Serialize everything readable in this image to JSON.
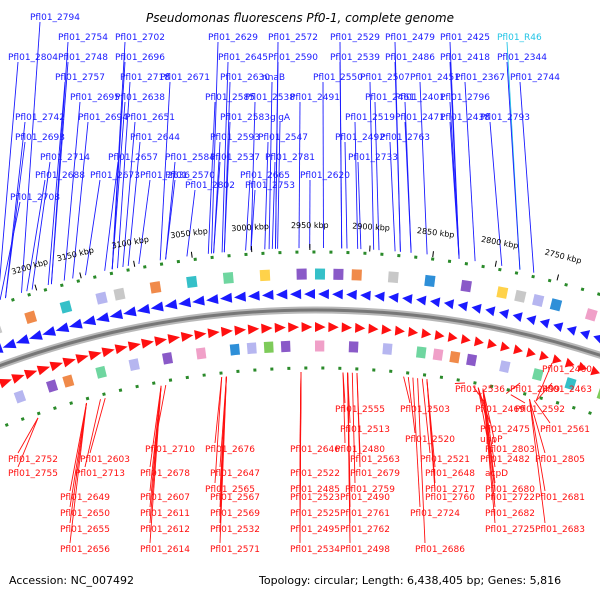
{
  "title": "Pseudomonas fluorescens Pf0-1, complete genome",
  "footer": {
    "accession": "Accession: NC_007492",
    "topology": "Topology: circular; Length: 6,438,405 bp; Genes: 5,816"
  },
  "colors": {
    "forward_strand": "#1a1aff",
    "reverse_strand": "#ff1010",
    "rna_label": "#22c4e6",
    "backbone": "#777777",
    "marker": "#2a8a2a"
  },
  "ticks": [
    "3200 kbp",
    "3150 kbp",
    "3100 kbp",
    "3050 kbp",
    "3000 kbp",
    "2950 kbp",
    "2900 kbp",
    "2850 kbp",
    "2800 kbp",
    "2750 kbp"
  ],
  "top_labels": [
    "Pfl01_2794",
    "Pfl01_2754",
    "Pfl01_2702",
    "Pfl01_2629",
    "Pfl01_2572",
    "Pfl01_2529",
    "Pfl01_2479",
    "Pfl01_2425",
    "Pfl01_R46",
    "Pfl01_2804",
    "Pfl01_2748",
    "Pfl01_2696",
    "Pfl01_2645",
    "Pfl01_2590",
    "Pfl01_2539",
    "Pfl01_2486",
    "Pfl01_2418",
    "Pfl01_2344",
    "Pfl01_2757",
    "Pfl01_2718",
    "Pfl01_2671",
    "Pfl01_2630",
    "nnaB",
    "Pfl01_2550",
    "Pfl01_2507",
    "Pfl01_2451",
    "Pfl01_2367",
    "Pfl01_2744",
    "Pfl01_2695",
    "Pfl01_2638",
    "Pfl01_2585",
    "Pfl01_2538",
    "Pfl01_2491",
    "Pfl01_2461",
    "Pfl01_2401",
    "Pfl01_2796",
    "Pfl01_2742",
    "Pfl01_2694",
    "Pfl01_2651",
    "Pfl01_2583",
    "glgA",
    "Pfl01_2519",
    "Pfl01_2471",
    "Pfl01_2438",
    "Pfl01_2793",
    "Pfl01_2693",
    "Pfl01_2644",
    "Pfl01_2593",
    "Pfl01_2547",
    "Pfl01_2492",
    "Pfl01_2763",
    "Pfl01_2714",
    "Pfl01_2657",
    "Pfl01_2584",
    "Pfl01_2537",
    "Pfl01_2781",
    "Pfl01_2733",
    "Pfl01_2688",
    "Pfl01_2673",
    "Pfl01_2636",
    "Pfl01_2570",
    "Pfl01_2665",
    "Pfl01_2620",
    "Pfl01_2802",
    "Pfl01_2753",
    "Pfl01_2708"
  ],
  "bottom_labels": [
    "Pfl01_2460",
    "Pfl01_2536",
    "Pfl01_2499",
    "Pfl01_2463",
    "Pfl01_2555",
    "Pfl01_2503",
    "Pfl01_2469",
    "Pfl01_2592",
    "Pfl01_2513",
    "Pfl01_2475",
    "Pfl01_2561",
    "Pfl01_2520",
    "uppP",
    "Pfl01_2710",
    "Pfl01_2676",
    "Pfl01_2646",
    "Pfl01_2480",
    "Pfl01_2803",
    "Pfl01_2752",
    "Pfl01_2603",
    "Pfl01_2563",
    "Pfl01_2521",
    "Pfl01_2482",
    "Pfl01_2805",
    "Pfl01_2755",
    "Pfl01_2713",
    "Pfl01_2678",
    "Pfl01_2647",
    "Pfl01_2522",
    "Pfl01_2679",
    "Pfl01_2648",
    "acpD",
    "Pfl01_2565",
    "Pfl01_2485",
    "Pfl01_2759",
    "Pfl01_2717",
    "Pfl01_2680",
    "Pfl01_2649",
    "Pfl01_2607",
    "Pfl01_2567",
    "Pfl01_2523",
    "Pfl01_2490",
    "Pfl01_2760",
    "Pfl01_2722",
    "Pfl01_2681",
    "Pfl01_2650",
    "Pfl01_2611",
    "Pfl01_2569",
    "Pfl01_2525",
    "Pfl01_2761",
    "Pfl01_2724",
    "Pfl01_2682",
    "Pfl01_2655",
    "Pfl01_2612",
    "Pfl01_2532",
    "Pfl01_2495",
    "Pfl01_2762",
    "Pfl01_2725",
    "Pfl01_2683",
    "Pfl01_2656",
    "Pfl01_2614",
    "Pfl01_2571",
    "Pfl01_2534",
    "Pfl01_2498",
    "Pfl01_2686"
  ]
}
